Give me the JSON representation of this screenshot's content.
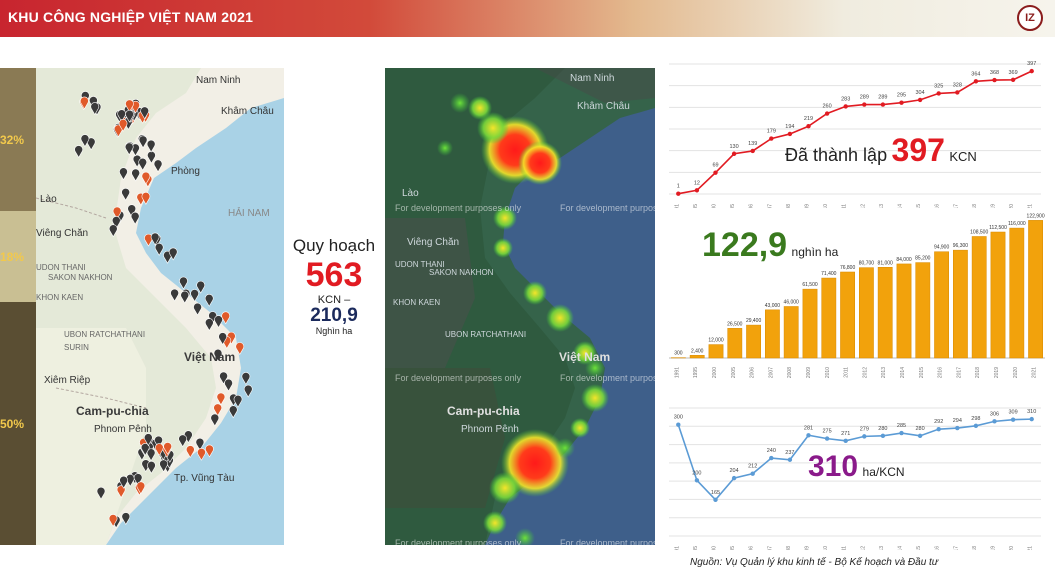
{
  "header": {
    "title": "KHU CÔNG NGHIỆP VIỆT NAM 2021",
    "logo_text": "IZ"
  },
  "side_shares": [
    "32%",
    "18%",
    "50%"
  ],
  "map_labels": {
    "nam_ninh": "Nam Ninh",
    "khamchau": "Khâm Châu",
    "hai_phong": "Phòng",
    "lao": "Lào",
    "vieng_chan": "Viêng Chăn",
    "udon": "UDON THANI",
    "sakon": "SAKON NAKHON",
    "khon_kaen": "KHON KAEN",
    "ubon": "UBON RATCHATHANI",
    "surin": "SURIN",
    "viet_nam": "Việt Nam",
    "cam_pu_chia": "Cam-pu-chia",
    "phnom_penh": "Phnom Pênh",
    "hai_nam": "HẢI NAM",
    "vung_tau": "Tp. Vũng Tàu",
    "xiem_riep": "Xiêm Riệp",
    "development": "For development purposes only"
  },
  "plan": {
    "label": "Quy hoạch",
    "count": "563",
    "unit": "KCN –",
    "area": "210,9",
    "area_unit": "Nghìn ha"
  },
  "charts": {
    "established": {
      "big": "397",
      "prefix": "Đã thành lập",
      "suffix": "KCN"
    },
    "area": {
      "big": "122,9",
      "suffix": "nghìn ha"
    },
    "avg": {
      "big": "310",
      "suffix": "ha/KCN"
    }
  },
  "source": "Nguồn: Vụ Quản lý khu kinh tế - Bộ Kế hoạch và Đầu tư",
  "chart_data": [
    {
      "type": "line",
      "x": [
        "1991",
        "1995",
        "2000",
        "2005",
        "2006",
        "2007",
        "2008",
        "2009",
        "2010",
        "2011",
        "2012",
        "2013",
        "2014",
        "2015",
        "2016",
        "2017",
        "2018",
        "2019",
        "2020",
        "2021"
      ],
      "values": [
        1,
        12,
        69,
        130,
        139,
        179,
        194,
        219,
        260,
        283,
        289,
        289,
        295,
        304,
        325,
        328,
        364,
        368,
        369,
        397
      ],
      "color": "#e11b22",
      "ylim": [
        0,
        420
      ]
    },
    {
      "type": "bar",
      "categories": [
        "1991",
        "1995",
        "2000",
        "2005",
        "2006",
        "2007",
        "2008",
        "2009",
        "2010",
        "2011",
        "2012",
        "2013",
        "2014",
        "2015",
        "2016",
        "2017",
        "2018",
        "2019",
        "2020",
        "2021"
      ],
      "values": [
        300,
        2400,
        12000,
        26500,
        29400,
        43000,
        46000,
        61500,
        71400,
        76800,
        80700,
        81000,
        84000,
        85200,
        94900,
        96300,
        108500,
        112500,
        116000,
        122900
      ],
      "labels": [
        "300",
        "2,400",
        "12,000",
        "26,500",
        "29,400",
        "43,000",
        "46,000",
        "61,500",
        "71,400",
        "76,800",
        "80,700",
        "81,000",
        "84,000",
        "85,200",
        "94,900",
        "96,300",
        "108,500",
        "112,500",
        "116,000",
        "122,900"
      ],
      "color": "#f2a20c",
      "ylim": [
        0,
        125000
      ]
    },
    {
      "type": "line",
      "x": [
        "1991",
        "1995",
        "2000",
        "2005",
        "2006",
        "2007",
        "2008",
        "2009",
        "2010",
        "2011",
        "2012",
        "2013",
        "2014",
        "2015",
        "2016",
        "2017",
        "2018",
        "2019",
        "2020",
        "2021"
      ],
      "values": [
        300,
        200,
        165,
        204,
        212,
        240,
        237,
        281,
        275,
        271,
        279,
        280,
        285,
        280,
        292,
        294,
        298,
        306,
        309,
        310
      ],
      "color": "#5b9bd5",
      "ylim": [
        100,
        330
      ]
    }
  ]
}
